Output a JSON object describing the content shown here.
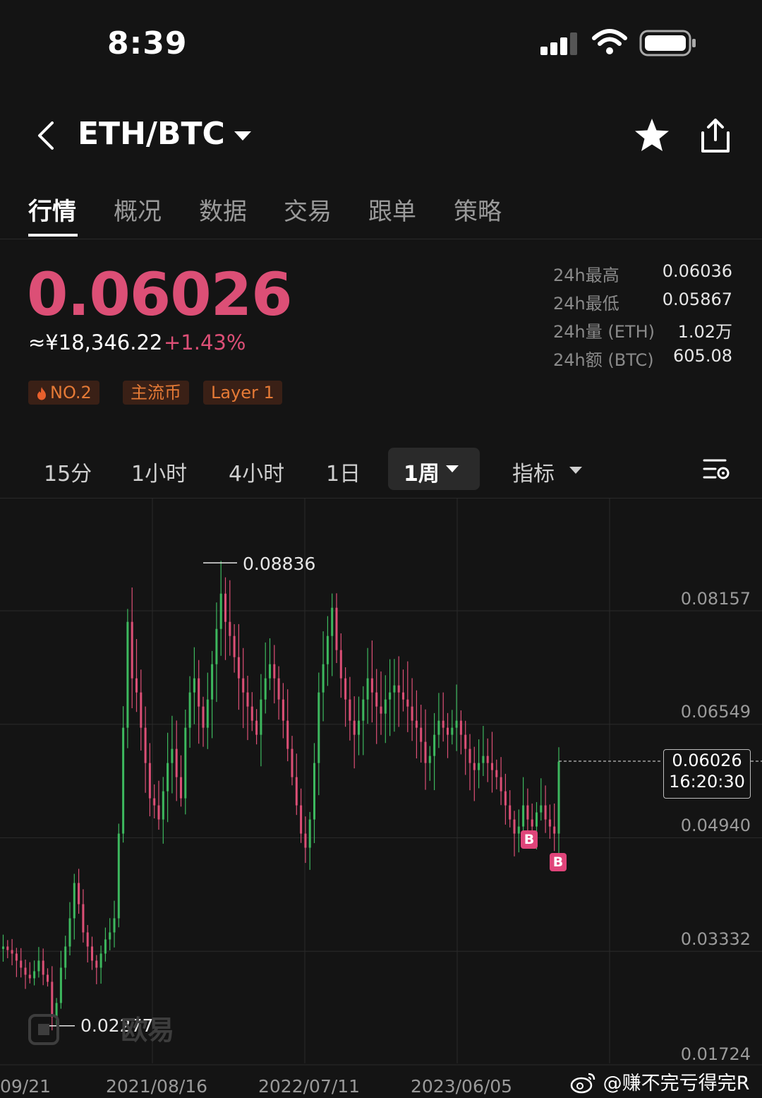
{
  "status_bar": {
    "time": "8:39"
  },
  "header": {
    "pair": "ETH/BTC"
  },
  "tabs": [
    "行情",
    "概况",
    "数据",
    "交易",
    "跟单",
    "策略"
  ],
  "price": {
    "last": "0.06026",
    "cny": "≈¥18,346.22",
    "change": "+1.43%"
  },
  "tags": [
    "NO.2",
    "主流币",
    "Layer 1"
  ],
  "stats": [
    {
      "label": "24h最高",
      "value": "0.06036"
    },
    {
      "label": "24h最低",
      "value": "0.05867"
    },
    {
      "label": "24h量 (ETH)",
      "value": "1.02万"
    },
    {
      "label": "24h额 (BTC)",
      "value": "605.08"
    }
  ],
  "timeframes": {
    "m15": "15分",
    "h1": "1小时",
    "h4": "4小时",
    "d1": "1日",
    "w1": "1周",
    "indicator": "指标"
  },
  "chart_data": {
    "type": "candlestick",
    "interval": "1周",
    "y_ticks": [
      "0.08157",
      "0.06549",
      "0.04940",
      "0.03332",
      "0.01724"
    ],
    "x_ticks": [
      "09/21",
      "2021/08/16",
      "2022/07/11",
      "2023/06/05"
    ],
    "ylim": [
      0.01724,
      0.0976
    ],
    "high_label": "0.08836",
    "low_label": "0.02277",
    "current_price": "0.06026",
    "countdown": "16:20:30",
    "buy_marker": "B",
    "closes": [
      0.034,
      0.0335,
      0.033,
      0.032,
      0.031,
      0.03,
      0.0295,
      0.0305,
      0.032,
      0.03,
      0.029,
      0.024,
      0.026,
      0.031,
      0.034,
      0.038,
      0.043,
      0.04,
      0.036,
      0.034,
      0.032,
      0.031,
      0.033,
      0.035,
      0.036,
      0.038,
      0.05,
      0.065,
      0.08,
      0.072,
      0.07,
      0.065,
      0.06,
      0.055,
      0.054,
      0.052,
      0.056,
      0.06,
      0.062,
      0.058,
      0.055,
      0.065,
      0.07,
      0.072,
      0.068,
      0.065,
      0.069,
      0.074,
      0.079,
      0.084,
      0.08,
      0.078,
      0.075,
      0.072,
      0.07,
      0.068,
      0.066,
      0.064,
      0.069,
      0.072,
      0.074,
      0.072,
      0.069,
      0.066,
      0.062,
      0.058,
      0.054,
      0.05,
      0.048,
      0.052,
      0.06,
      0.07,
      0.074,
      0.078,
      0.082,
      0.076,
      0.072,
      0.069,
      0.066,
      0.064,
      0.066,
      0.069,
      0.072,
      0.07,
      0.068,
      0.067,
      0.069,
      0.07,
      0.071,
      0.07,
      0.069,
      0.068,
      0.066,
      0.065,
      0.063,
      0.06,
      0.061,
      0.064,
      0.066,
      0.065,
      0.064,
      0.065,
      0.066,
      0.064,
      0.062,
      0.06,
      0.059,
      0.06,
      0.061,
      0.06,
      0.059,
      0.058,
      0.056,
      0.054,
      0.052,
      0.05,
      0.051,
      0.054,
      0.052,
      0.051,
      0.053,
      0.054,
      0.052,
      0.051,
      0.05,
      0.0602
    ]
  },
  "watermark": "欧易",
  "weibo_handle": "@赚不完亏得完R"
}
